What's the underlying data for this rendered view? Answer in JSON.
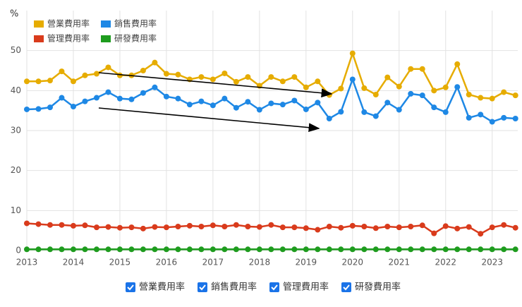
{
  "chart_data": {
    "type": "line",
    "y_label": "%",
    "x": [
      2013,
      2013.25,
      2013.5,
      2013.75,
      2014,
      2014.25,
      2014.5,
      2014.75,
      2015,
      2015.25,
      2015.5,
      2015.75,
      2016,
      2016.25,
      2016.5,
      2016.75,
      2017,
      2017.25,
      2017.5,
      2017.75,
      2018,
      2018.25,
      2018.5,
      2018.75,
      2019,
      2019.25,
      2019.5,
      2019.75,
      2020,
      2020.25,
      2020.5,
      2020.75,
      2021,
      2021.25,
      2021.5,
      2021.75,
      2022,
      2022.25,
      2022.5,
      2022.75,
      2023,
      2023.25,
      2023.5
    ],
    "xlim": [
      2013,
      2023.55
    ],
    "xticks": [
      2013,
      2014,
      2015,
      2016,
      2017,
      2018,
      2019,
      2020,
      2021,
      2022,
      2023
    ],
    "ylim": [
      0,
      60
    ],
    "yticks": [
      0,
      10,
      20,
      30,
      40,
      50
    ],
    "grid": true,
    "series": [
      {
        "name": "營業費用率",
        "color": "#e6ac00",
        "values": [
          42.3,
          42.3,
          42.5,
          44.8,
          42.3,
          43.8,
          44.2,
          45.8,
          43.8,
          43.8,
          45.0,
          47.0,
          44.2,
          44.0,
          42.8,
          43.4,
          42.8,
          44.3,
          42.2,
          43.4,
          41.2,
          43.4,
          42.3,
          43.4,
          40.8,
          42.3,
          38.9,
          40.5,
          49.3,
          40.6,
          39.0,
          43.3,
          41.0,
          45.4,
          45.4,
          40.0,
          40.8,
          46.6,
          39.0,
          38.2,
          38.0,
          39.6,
          38.8
        ]
      },
      {
        "name": "銷售費用率",
        "color": "#1e88e5",
        "values": [
          35.3,
          35.4,
          35.8,
          38.2,
          36.0,
          37.3,
          38.2,
          39.6,
          38.0,
          37.8,
          39.4,
          40.8,
          38.5,
          38.0,
          36.5,
          37.3,
          36.3,
          38.0,
          35.7,
          37.2,
          35.2,
          36.8,
          36.5,
          37.5,
          35.3,
          37.0,
          33.0,
          34.7,
          42.8,
          34.6,
          33.6,
          37.0,
          35.2,
          39.2,
          38.8,
          35.8,
          34.6,
          40.9,
          33.2,
          34.0,
          32.2,
          33.2,
          33.0
        ]
      },
      {
        "name": "管理費用率",
        "color": "#d93b1c",
        "values": [
          6.8,
          6.6,
          6.4,
          6.4,
          6.2,
          6.3,
          5.8,
          5.9,
          5.7,
          5.8,
          5.5,
          5.9,
          5.8,
          6.0,
          6.2,
          6.0,
          6.3,
          6.0,
          6.4,
          6.0,
          5.9,
          6.4,
          5.8,
          5.8,
          5.6,
          5.2,
          6.0,
          5.7,
          6.2,
          6.0,
          5.6,
          6.0,
          5.8,
          6.0,
          6.3,
          4.3,
          6.1,
          5.5,
          5.9,
          4.2,
          5.8,
          6.4,
          5.7
        ]
      },
      {
        "name": "研發費用率",
        "color": "#1e9c1e",
        "values": [
          0.3,
          0.3,
          0.3,
          0.3,
          0.3,
          0.3,
          0.3,
          0.3,
          0.3,
          0.3,
          0.3,
          0.3,
          0.3,
          0.3,
          0.3,
          0.3,
          0.3,
          0.3,
          0.3,
          0.3,
          0.3,
          0.3,
          0.3,
          0.3,
          0.3,
          0.3,
          0.3,
          0.3,
          0.3,
          0.3,
          0.3,
          0.3,
          0.3,
          0.3,
          0.3,
          0.3,
          0.3,
          0.3,
          0.3,
          0.3,
          0.3,
          0.3,
          0.3
        ]
      }
    ]
  }
}
